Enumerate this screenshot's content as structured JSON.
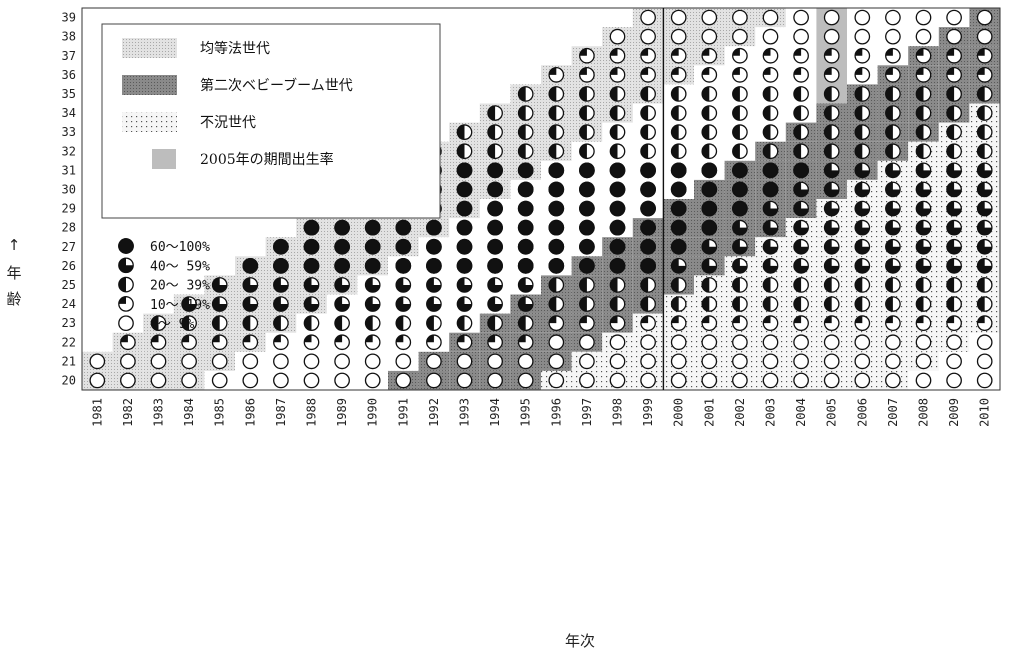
{
  "chart_data": {
    "type": "heatmap",
    "xlabel": "年次",
    "ylabel": "↑年齢",
    "x_categories": [
      "1981",
      "1982",
      "1983",
      "1984",
      "1985",
      "1986",
      "1987",
      "1988",
      "1989",
      "1990",
      "1991",
      "1992",
      "1993",
      "1994",
      "1995",
      "1996",
      "1997",
      "1998",
      "1999",
      "2000",
      "2001",
      "2002",
      "2003",
      "2004",
      "2005",
      "2006",
      "2007",
      "2008",
      "2009",
      "2010"
    ],
    "y_categories": [
      "20",
      "21",
      "22",
      "23",
      "24",
      "25",
      "26",
      "27",
      "28",
      "29",
      "30",
      "31",
      "32",
      "33",
      "34",
      "35",
      "36",
      "37",
      "38",
      "39"
    ],
    "marker_legend": [
      {
        "label": "60〜100%",
        "level": 4
      },
      {
        "label": "40〜 59%",
        "level": 3
      },
      {
        "label": "20〜 39%",
        "level": 2
      },
      {
        "label": "10〜 19%",
        "level": 1
      },
      {
        "label": " 0〜  9%",
        "level": 0
      }
    ],
    "band_legend": [
      {
        "label": "均等法世代",
        "pattern": "fine-dots"
      },
      {
        "label": "第二次ベビーブーム世代",
        "pattern": "dark-dots"
      },
      {
        "label": "不況世代",
        "pattern": "sparse-dots"
      },
      {
        "label": "2005年の期間出生率",
        "pattern": "solid-gray"
      }
    ],
    "reference_line_year": "1999/2000",
    "highlight_year": "2005",
    "colors": {
      "marker_fill": "#111111",
      "marker_empty": "#ffffff",
      "band_gray": "#bdbdbd",
      "light_gray": "#dcdcdc"
    }
  }
}
